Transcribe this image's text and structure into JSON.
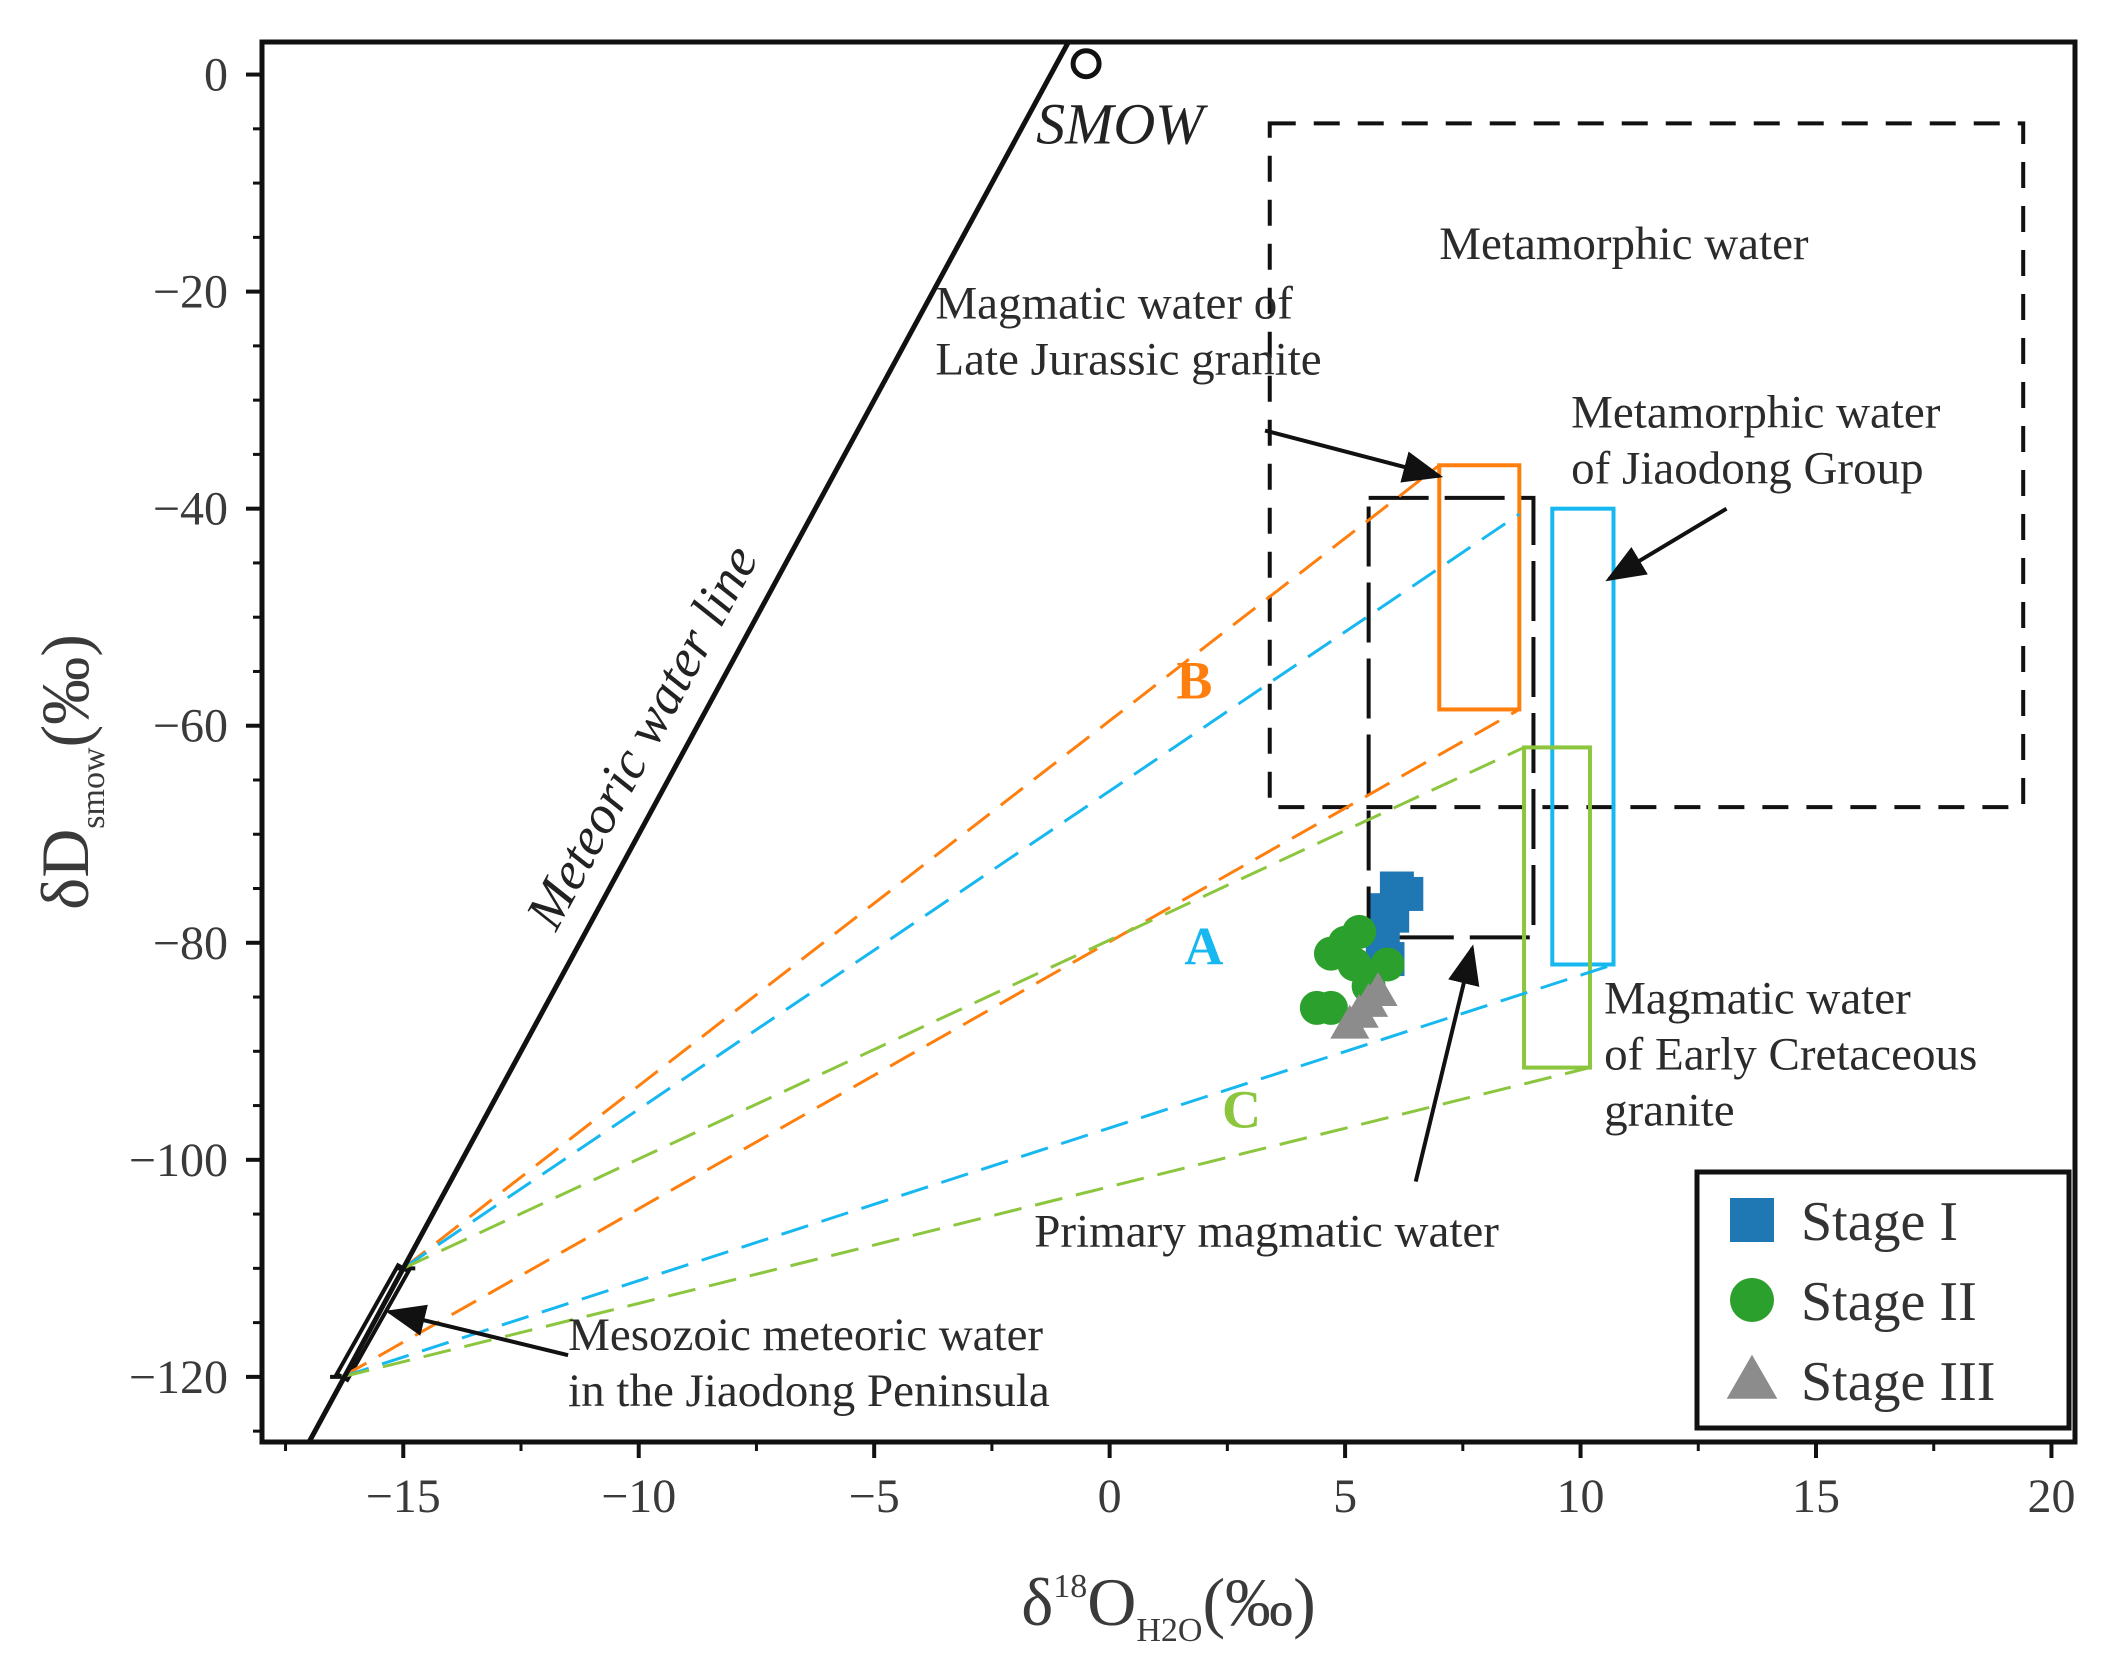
{
  "chart_data": {
    "type": "scatter",
    "title": "",
    "xlabel": {
      "prefix": "δ",
      "sup": "18",
      "main": "O",
      "sub": "H2O",
      "suffix": "(‰)"
    },
    "ylabel": {
      "prefix": "δD",
      "sub": "smow",
      "suffix": "(‰)"
    },
    "xlim": [
      -18,
      20.5
    ],
    "ylim": [
      -126,
      3
    ],
    "x_ticks": [
      -15,
      -10,
      -5,
      0,
      5,
      10,
      15,
      20
    ],
    "x_tick_labels": [
      "−15",
      "−10",
      "−5",
      "0",
      "5",
      "10",
      "15",
      "20"
    ],
    "y_ticks": [
      0,
      -20,
      -40,
      -60,
      -80,
      -100,
      -120
    ],
    "y_tick_labels": [
      "0",
      "−20",
      "−40",
      "−60",
      "−80",
      "−100",
      "−120"
    ],
    "colors": {
      "stage1": "#1f77b4",
      "stage2": "#2ca02c",
      "stage3": "#8c8c8c",
      "orange": "#ff7f0e",
      "cyan": "#17b8f0",
      "lime": "#8cc63f",
      "axis": "#111111"
    },
    "series": [
      {
        "name": "Stage I",
        "marker": "square",
        "x": [
          6.1,
          6.3,
          5.9,
          6.0,
          5.8,
          5.9
        ],
        "y": [
          -75,
          -75.5,
          -77,
          -77.5,
          -80.5,
          -81.5
        ]
      },
      {
        "name": "Stage II",
        "marker": "circle",
        "x": [
          5.3,
          5.0,
          4.7,
          5.2,
          5.9,
          5.5,
          4.4,
          4.7
        ],
        "y": [
          -79,
          -80,
          -81,
          -82,
          -82,
          -84,
          -86,
          -86
        ]
      },
      {
        "name": "Stage III",
        "marker": "triangle",
        "x": [
          5.7,
          5.5,
          5.3,
          5.1
        ],
        "y": [
          -84.5,
          -85.5,
          -86.5,
          -87.5
        ]
      }
    ],
    "meteoric_water_line": {
      "label": "Meteoric water line",
      "equation": "δD = 8·δ18O + 10"
    },
    "smow": {
      "label": "SMOW",
      "x": -0.5,
      "y": 1
    },
    "regions": [
      {
        "name": "Metamorphic water",
        "style": "dashed",
        "color": "#111111",
        "x": [
          3.4,
          19.4
        ],
        "y": [
          -67.5,
          -4.5
        ]
      },
      {
        "name": "Primary magmatic water",
        "style": "longdash",
        "color": "#111111",
        "x": [
          5.5,
          9.0
        ],
        "y": [
          -79.5,
          -39
        ]
      },
      {
        "name": "Magmatic water of Late Jurassic granite",
        "style": "solid",
        "color": "#ff7f0e",
        "x": [
          7.0,
          8.7
        ],
        "y": [
          -58.5,
          -36
        ]
      },
      {
        "name": "Metamorphic water of Jiaodong Group",
        "style": "solid",
        "color": "#17b8f0",
        "x": [
          9.4,
          10.7
        ],
        "y": [
          -82,
          -40
        ]
      },
      {
        "name": "Magmatic water of Early Cretaceous granite",
        "style": "solid",
        "color": "#8cc63f",
        "x": [
          8.8,
          10.2
        ],
        "y": [
          -91.5,
          -62
        ]
      },
      {
        "name": "Mesozoic meteoric water in the Jiaodong Peninsula",
        "style": "bar",
        "color": "#111111",
        "x": [
          -16.3,
          -15.0
        ],
        "y": [
          -120,
          -110
        ]
      }
    ],
    "mixing_lines": [
      {
        "label": "B",
        "color": "#ff7f0e",
        "lines": [
          [
            [
              -15.0,
              -110
            ],
            [
              7.0,
              -36
            ]
          ],
          [
            [
              -16.3,
              -120
            ],
            [
              8.7,
              -58.5
            ]
          ]
        ]
      },
      {
        "label": "A",
        "color": "#17b8f0",
        "lines": [
          [
            [
              -15.0,
              -110
            ],
            [
              8.7,
              -40.5
            ]
          ],
          [
            [
              -16.3,
              -120
            ],
            [
              10.7,
              -82
            ]
          ]
        ]
      },
      {
        "label": "C",
        "color": "#8cc63f",
        "lines": [
          [
            [
              -15.0,
              -110
            ],
            [
              8.8,
              -62
            ]
          ],
          [
            [
              -16.3,
              -120
            ],
            [
              10.2,
              -91.5
            ]
          ]
        ]
      }
    ],
    "mixing_labels": [
      {
        "text": "B",
        "color": "#ff7f0e",
        "x": 1.8,
        "y": -57.5
      },
      {
        "text": "A",
        "color": "#17b8f0",
        "x": 2.0,
        "y": -82
      },
      {
        "text": "C",
        "color": "#8cc63f",
        "x": 2.8,
        "y": -97
      }
    ],
    "annotations": [
      {
        "id": "metamorphic",
        "lines": [
          "Metamorphic water"
        ],
        "x": 7.0,
        "y": -17
      },
      {
        "id": "late-jurassic",
        "lines": [
          "Magmatic water of",
          "Late Jurassic granite"
        ],
        "x": -3.7,
        "y": -22.5
      },
      {
        "id": "jiaodong-group",
        "lines": [
          "Metamorphic water",
          "of Jiaodong Group"
        ],
        "x": 9.8,
        "y": -32.5
      },
      {
        "id": "early-cretaceous",
        "lines": [
          "Magmatic water",
          "of Early Cretaceous",
          "granite"
        ],
        "x": 10.5,
        "y": -86.5
      },
      {
        "id": "primary-magmatic",
        "lines": [
          "Primary  magmatic water"
        ],
        "x": -1.6,
        "y": -108
      },
      {
        "id": "mesozoic",
        "lines": [
          "Mesozoic meteoric water",
          "in the Jiaodong Peninsula"
        ],
        "x": -11.5,
        "y": -117.5
      }
    ],
    "arrows": [
      {
        "from": [
          3.3,
          -32.8
        ],
        "to": [
          7.0,
          -37
        ]
      },
      {
        "from": [
          13.1,
          -40
        ],
        "to": [
          10.6,
          -46.5
        ]
      },
      {
        "from": [
          6.5,
          -102
        ],
        "to": [
          7.7,
          -80.5
        ]
      },
      {
        "from": [
          -11.5,
          -118
        ],
        "to": [
          -15.3,
          -114
        ]
      }
    ],
    "legend": {
      "position": "bottom-right",
      "entries": [
        "Stage I",
        "Stage II",
        "Stage III"
      ]
    }
  }
}
